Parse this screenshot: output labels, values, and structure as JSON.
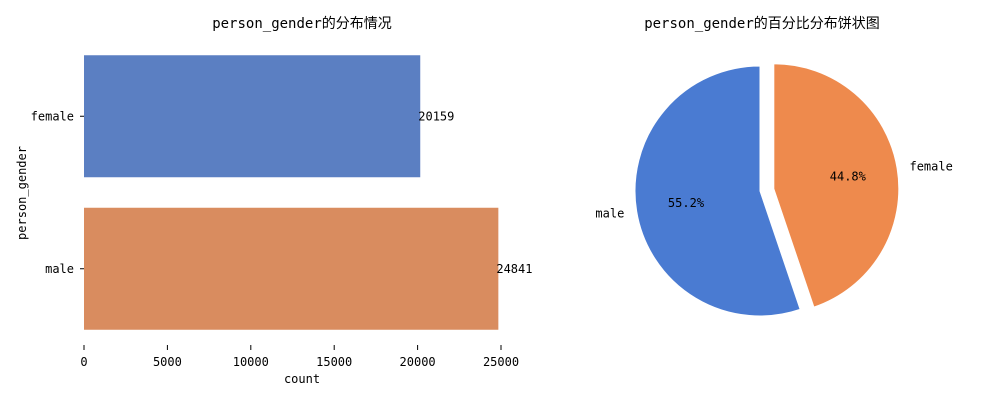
{
  "chart_data": [
    {
      "type": "bar",
      "orientation": "horizontal",
      "title": "person_gender的分布情况",
      "xlabel": "count",
      "ylabel": "person_gender",
      "categories": [
        "female",
        "male"
      ],
      "values": [
        20159,
        24841
      ],
      "data_labels": [
        "20159",
        "24841"
      ],
      "xlim": [
        0,
        25000
      ],
      "xticks": [
        0,
        5000,
        10000,
        15000,
        20000,
        25000
      ],
      "colors": [
        "#5b7fc2",
        "#d98c5f"
      ],
      "grid": false
    },
    {
      "type": "pie",
      "title": "person_gender的百分比分布饼状图",
      "labels": [
        "male",
        "female"
      ],
      "values": [
        55.2,
        44.8
      ],
      "pct_labels": [
        "55.2%",
        "44.8%"
      ],
      "colors": [
        "#4a7bd2",
        "#ee8a4d"
      ],
      "exploded": [
        false,
        true
      ]
    }
  ]
}
